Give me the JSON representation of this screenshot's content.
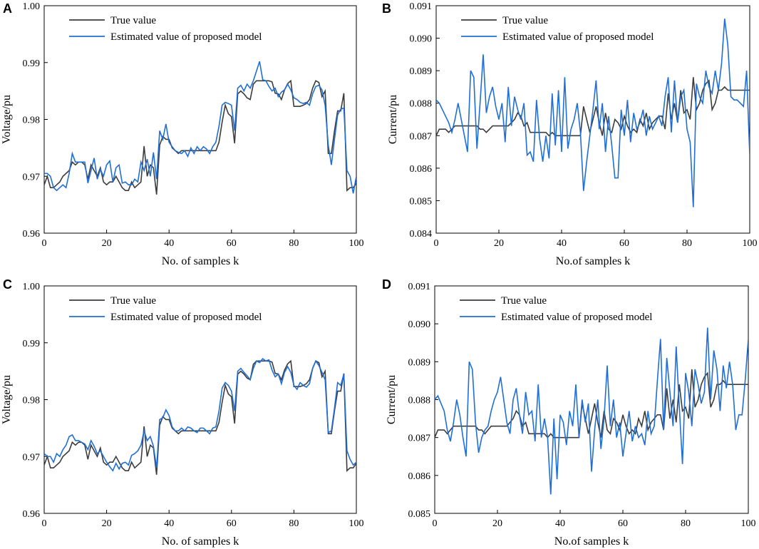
{
  "colors": {
    "true": "#3c3c3c",
    "estimated": "#1f6fd6"
  },
  "chart_data": [
    {
      "type": "line",
      "panel_label": "A",
      "xlabel": "No. of samples k",
      "ylabel": "Voltage/pu",
      "xlim": [
        0,
        100
      ],
      "ylim": [
        0.96,
        1.0
      ],
      "x_ticks": [
        "0",
        "20",
        "40",
        "60",
        "80",
        "100"
      ],
      "y_ticks": [
        "0.96",
        "0.97",
        "0.98",
        "0.99",
        "1.00"
      ],
      "legend": [
        "True value",
        "Estimated value of proposed model"
      ],
      "series": [
        {
          "name": "True value",
          "values": [
            0.9685,
            0.97,
            0.968,
            0.968,
            0.9685,
            0.969,
            0.97,
            0.9705,
            0.971,
            0.9725,
            0.972,
            0.9725,
            0.9725,
            0.972,
            0.9695,
            0.972,
            0.971,
            0.97,
            0.9715,
            0.969,
            0.9685,
            0.969,
            0.969,
            0.97,
            0.969,
            0.968,
            0.9675,
            0.9675,
            0.969,
            0.968,
            0.9685,
            0.969,
            0.9753,
            0.97,
            0.972,
            0.9715,
            0.9668,
            0.9755,
            0.977,
            0.9765,
            0.9765,
            0.975,
            0.9745,
            0.974,
            0.9745,
            0.9745,
            0.9745,
            0.9745,
            0.9745,
            0.9745,
            0.9745,
            0.9745,
            0.9745,
            0.9745,
            0.9745,
            0.9745,
            0.976,
            0.9795,
            0.9825,
            0.981,
            0.9805,
            0.9758,
            0.9845,
            0.985,
            0.9845,
            0.9838,
            0.9835,
            0.9862,
            0.9868,
            0.9868,
            0.9868,
            0.9868,
            0.9868,
            0.9866,
            0.9846,
            0.9845,
            0.9835,
            0.9852,
            0.9863,
            0.9868,
            0.9823,
            0.9823,
            0.9823,
            0.9825,
            0.9828,
            0.9835,
            0.9855,
            0.9868,
            0.9865,
            0.984,
            0.985,
            0.974,
            0.974,
            0.978,
            0.9815,
            0.9815,
            0.9846,
            0.9675,
            0.968,
            0.968,
            0.9688
          ]
        },
        {
          "name": "Estimated value of proposed model",
          "values": [
            0.9705,
            0.9705,
            0.97,
            0.968,
            0.9675,
            0.968,
            0.9685,
            0.968,
            0.9705,
            0.974,
            0.9725,
            0.9725,
            0.9725,
            0.9725,
            0.9688,
            0.971,
            0.9732,
            0.9695,
            0.9712,
            0.97,
            0.972,
            0.9727,
            0.969,
            0.9715,
            0.972,
            0.9688,
            0.969,
            0.9685,
            0.9685,
            0.9695,
            0.969,
            0.9725,
            0.971,
            0.973,
            0.97,
            0.9742,
            0.9695,
            0.978,
            0.9765,
            0.9792,
            0.976,
            0.9752,
            0.9745,
            0.9742,
            0.974,
            0.9745,
            0.9735,
            0.975,
            0.974,
            0.9752,
            0.9745,
            0.9752,
            0.9748,
            0.974,
            0.9752,
            0.976,
            0.9788,
            0.9825,
            0.983,
            0.9828,
            0.9825,
            0.978,
            0.9855,
            0.986,
            0.985,
            0.9862,
            0.9855,
            0.9868,
            0.9885,
            0.9902,
            0.987,
            0.9868,
            0.9858,
            0.985,
            0.9855,
            0.984,
            0.9848,
            0.9852,
            0.9862,
            0.9852,
            0.9838,
            0.9835,
            0.983,
            0.9828,
            0.983,
            0.9825,
            0.9845,
            0.9858,
            0.986,
            0.9852,
            0.9825,
            0.9755,
            0.972,
            0.9765,
            0.9808,
            0.9818,
            0.982,
            0.971,
            0.97,
            0.967,
            0.97
          ]
        }
      ]
    },
    {
      "type": "line",
      "panel_label": "B",
      "xlabel": "No.of samples k",
      "ylabel": "Current/pu",
      "xlim": [
        0,
        100
      ],
      "ylim": [
        0.084,
        0.091
      ],
      "x_ticks": [
        "0",
        "20",
        "40",
        "60",
        "80",
        "100"
      ],
      "y_ticks": [
        "0.084",
        "0.085",
        "0.086",
        "0.087",
        "0.088",
        "0.089",
        "0.090",
        "0.091"
      ],
      "legend": [
        "True value",
        "Estimated value of proposed model"
      ],
      "series": [
        {
          "name": "True value",
          "values": [
            0.087,
            0.0872,
            0.0872,
            0.0872,
            0.0871,
            0.0872,
            0.0873,
            0.0873,
            0.0873,
            0.0873,
            0.0873,
            0.0873,
            0.0873,
            0.0873,
            0.0872,
            0.0872,
            0.0871,
            0.0872,
            0.0873,
            0.0873,
            0.0873,
            0.0873,
            0.0873,
            0.0873,
            0.0874,
            0.0875,
            0.0877,
            0.0876,
            0.0873,
            0.0874,
            0.0871,
            0.0871,
            0.0871,
            0.0871,
            0.0871,
            0.0871,
            0.087,
            0.0871,
            0.087,
            0.087,
            0.087,
            0.087,
            0.087,
            0.087,
            0.087,
            0.087,
            0.087,
            0.0879,
            0.0875,
            0.0871,
            0.0875,
            0.0879,
            0.0874,
            0.087,
            0.0877,
            0.0872,
            0.0871,
            0.0875,
            0.0874,
            0.0872,
            0.0876,
            0.0873,
            0.0871,
            0.0872,
            0.0871,
            0.0875,
            0.0873,
            0.0877,
            0.0872,
            0.0874,
            0.0875,
            0.0876,
            0.0876,
            0.0872,
            0.0883,
            0.0875,
            0.088,
            0.0874,
            0.0884,
            0.0877,
            0.0878,
            0.0875,
            0.0888,
            0.0878,
            0.088,
            0.0884,
            0.0886,
            0.0887,
            0.0878,
            0.088,
            0.0884,
            0.0884,
            0.0885,
            0.0884,
            0.0884,
            0.0884,
            0.0884,
            0.0884,
            0.0884,
            0.0884,
            0.0884
          ]
        },
        {
          "name": "Estimated value of proposed model",
          "values": [
            0.0881,
            0.088,
            0.0878,
            0.0876,
            0.0874,
            0.0871,
            0.0875,
            0.088,
            0.0875,
            0.087,
            0.0865,
            0.089,
            0.0888,
            0.0866,
            0.088,
            0.0895,
            0.0877,
            0.0882,
            0.0885,
            0.0879,
            0.0875,
            0.088,
            0.0868,
            0.0885,
            0.0873,
            0.0882,
            0.0878,
            0.0875,
            0.088,
            0.0864,
            0.0865,
            0.0862,
            0.0881,
            0.0869,
            0.0862,
            0.087,
            0.0863,
            0.0883,
            0.0867,
            0.0884,
            0.0865,
            0.0888,
            0.0866,
            0.0872,
            0.0875,
            0.088,
            0.0871,
            0.0853,
            0.0862,
            0.087,
            0.0878,
            0.0887,
            0.0872,
            0.088,
            0.0865,
            0.0876,
            0.0867,
            0.0857,
            0.0857,
            0.0878,
            0.087,
            0.0881,
            0.0868,
            0.0877,
            0.0872,
            0.0874,
            0.0878,
            0.087,
            0.0876,
            0.0872,
            0.0874,
            0.0876,
            0.0873,
            0.0882,
            0.0888,
            0.0871,
            0.0887,
            0.0874,
            0.0882,
            0.0884,
            0.0872,
            0.0868,
            0.0848,
            0.0886,
            0.0882,
            0.088,
            0.089,
            0.0885,
            0.0883,
            0.089,
            0.0884,
            0.0892,
            0.0906,
            0.0898,
            0.0882,
            0.0881,
            0.0881,
            0.088,
            0.0879,
            0.089,
            0.0864
          ]
        }
      ]
    },
    {
      "type": "line",
      "panel_label": "C",
      "xlabel": "No. of samples k",
      "ylabel": "Voltage/pu",
      "xlim": [
        0,
        100
      ],
      "ylim": [
        0.96,
        1.0
      ],
      "x_ticks": [
        "0",
        "20",
        "40",
        "60",
        "80",
        "100"
      ],
      "y_ticks": [
        "0.96",
        "0.97",
        "0.98",
        "0.99",
        "1.00"
      ],
      "legend": [
        "True value",
        "Estimated value of proposed model"
      ],
      "series": [
        {
          "name": "True value",
          "values": [
            0.9685,
            0.97,
            0.968,
            0.968,
            0.9685,
            0.969,
            0.97,
            0.9705,
            0.971,
            0.9725,
            0.972,
            0.9725,
            0.9725,
            0.972,
            0.9695,
            0.972,
            0.971,
            0.97,
            0.9715,
            0.969,
            0.9685,
            0.969,
            0.969,
            0.97,
            0.969,
            0.968,
            0.9675,
            0.9675,
            0.969,
            0.968,
            0.9685,
            0.969,
            0.9753,
            0.97,
            0.972,
            0.9715,
            0.9668,
            0.9755,
            0.977,
            0.9765,
            0.9765,
            0.975,
            0.9745,
            0.974,
            0.9745,
            0.9745,
            0.9745,
            0.9745,
            0.9745,
            0.9745,
            0.9745,
            0.9745,
            0.9745,
            0.9745,
            0.9745,
            0.9745,
            0.976,
            0.9795,
            0.9825,
            0.981,
            0.9805,
            0.9758,
            0.9845,
            0.985,
            0.9845,
            0.9838,
            0.9835,
            0.9862,
            0.9868,
            0.9868,
            0.9868,
            0.9868,
            0.9868,
            0.9866,
            0.9846,
            0.9845,
            0.9835,
            0.9852,
            0.9863,
            0.9868,
            0.9823,
            0.9823,
            0.9823,
            0.9825,
            0.9828,
            0.9835,
            0.9855,
            0.9868,
            0.9865,
            0.984,
            0.985,
            0.974,
            0.974,
            0.978,
            0.9815,
            0.9815,
            0.9846,
            0.9675,
            0.968,
            0.968,
            0.9688
          ]
        },
        {
          "name": "Estimated value of proposed model",
          "values": [
            0.9705,
            0.97,
            0.97,
            0.969,
            0.9705,
            0.97,
            0.9712,
            0.972,
            0.9735,
            0.9738,
            0.9728,
            0.9728,
            0.9725,
            0.9722,
            0.9712,
            0.9728,
            0.9718,
            0.9705,
            0.971,
            0.97,
            0.969,
            0.9682,
            0.9675,
            0.9688,
            0.9678,
            0.9688,
            0.969,
            0.9685,
            0.9702,
            0.9705,
            0.971,
            0.972,
            0.9745,
            0.9728,
            0.9735,
            0.9718,
            0.968,
            0.9765,
            0.9768,
            0.9782,
            0.9772,
            0.9752,
            0.9745,
            0.9745,
            0.975,
            0.9745,
            0.9752,
            0.975,
            0.9745,
            0.9742,
            0.975,
            0.975,
            0.9745,
            0.974,
            0.975,
            0.9752,
            0.978,
            0.982,
            0.983,
            0.9825,
            0.9815,
            0.978,
            0.985,
            0.9855,
            0.9848,
            0.9842,
            0.9835,
            0.9855,
            0.9868,
            0.9865,
            0.9872,
            0.9868,
            0.987,
            0.9852,
            0.984,
            0.9845,
            0.9828,
            0.9848,
            0.9858,
            0.9848,
            0.9825,
            0.9818,
            0.983,
            0.9825,
            0.9822,
            0.9828,
            0.9855,
            0.9868,
            0.986,
            0.9848,
            0.9835,
            0.9742,
            0.9745,
            0.9785,
            0.983,
            0.9825,
            0.9845,
            0.971,
            0.9695,
            0.9685,
            0.969
          ]
        }
      ]
    },
    {
      "type": "line",
      "panel_label": "D",
      "xlabel": "No.of samples k",
      "ylabel": "Current/pu",
      "xlim": [
        0,
        100
      ],
      "ylim": [
        0.085,
        0.091
      ],
      "x_ticks": [
        "0",
        "20",
        "40",
        "60",
        "80",
        "100"
      ],
      "y_ticks": [
        "0.085",
        "0.086",
        "0.087",
        "0.088",
        "0.089",
        "0.090",
        "0.091"
      ],
      "legend": [
        "True value",
        "Estimated value of proposed model"
      ],
      "series": [
        {
          "name": "True value",
          "values": [
            0.087,
            0.0872,
            0.0872,
            0.0872,
            0.0871,
            0.0872,
            0.0873,
            0.0873,
            0.0873,
            0.0873,
            0.0873,
            0.0873,
            0.0873,
            0.0873,
            0.0872,
            0.0872,
            0.0871,
            0.0872,
            0.0873,
            0.0873,
            0.0873,
            0.0873,
            0.0873,
            0.0873,
            0.0874,
            0.0875,
            0.0877,
            0.0876,
            0.0873,
            0.0874,
            0.0871,
            0.0871,
            0.0871,
            0.0871,
            0.0871,
            0.0871,
            0.087,
            0.0871,
            0.087,
            0.087,
            0.087,
            0.087,
            0.087,
            0.087,
            0.087,
            0.087,
            0.087,
            0.0879,
            0.0875,
            0.0871,
            0.0875,
            0.0879,
            0.0874,
            0.087,
            0.0877,
            0.0872,
            0.0871,
            0.0875,
            0.0874,
            0.0872,
            0.0876,
            0.0873,
            0.0871,
            0.0872,
            0.0871,
            0.0875,
            0.0873,
            0.0877,
            0.0872,
            0.0874,
            0.0875,
            0.0876,
            0.0876,
            0.0872,
            0.0883,
            0.0875,
            0.088,
            0.0874,
            0.0884,
            0.0877,
            0.0878,
            0.0875,
            0.0888,
            0.0878,
            0.088,
            0.0884,
            0.0886,
            0.0887,
            0.0878,
            0.088,
            0.0884,
            0.0884,
            0.0885,
            0.0884,
            0.0884,
            0.0884,
            0.0884,
            0.0884,
            0.0884,
            0.0884,
            0.0884
          ]
        },
        {
          "name": "Estimated value of proposed model",
          "values": [
            0.088,
            0.0881,
            0.0879,
            0.0877,
            0.0872,
            0.0869,
            0.0874,
            0.088,
            0.0876,
            0.087,
            0.0865,
            0.089,
            0.0888,
            0.0874,
            0.0866,
            0.087,
            0.0872,
            0.0873,
            0.0877,
            0.088,
            0.0882,
            0.0886,
            0.088,
            0.0874,
            0.0871,
            0.088,
            0.0883,
            0.0876,
            0.0871,
            0.0882,
            0.0876,
            0.0877,
            0.0869,
            0.0884,
            0.087,
            0.0875,
            0.087,
            0.0855,
            0.0875,
            0.0859,
            0.0876,
            0.0874,
            0.0868,
            0.0877,
            0.0873,
            0.0884,
            0.087,
            0.088,
            0.0874,
            0.0879,
            0.0861,
            0.0872,
            0.088,
            0.0867,
            0.0875,
            0.0889,
            0.0873,
            0.088,
            0.087,
            0.0874,
            0.0865,
            0.0871,
            0.0877,
            0.0869,
            0.0873,
            0.087,
            0.0871,
            0.0868,
            0.0877,
            0.0871,
            0.0873,
            0.0885,
            0.0896,
            0.0872,
            0.0891,
            0.0882,
            0.0873,
            0.0894,
            0.0878,
            0.0863,
            0.0887,
            0.0882,
            0.0873,
            0.0888,
            0.0884,
            0.0879,
            0.0882,
            0.0899,
            0.088,
            0.0893,
            0.0888,
            0.0877,
            0.0889,
            0.0883,
            0.089,
            0.0884,
            0.0872,
            0.0876,
            0.0876,
            0.0885,
            0.0896
          ]
        }
      ]
    }
  ]
}
